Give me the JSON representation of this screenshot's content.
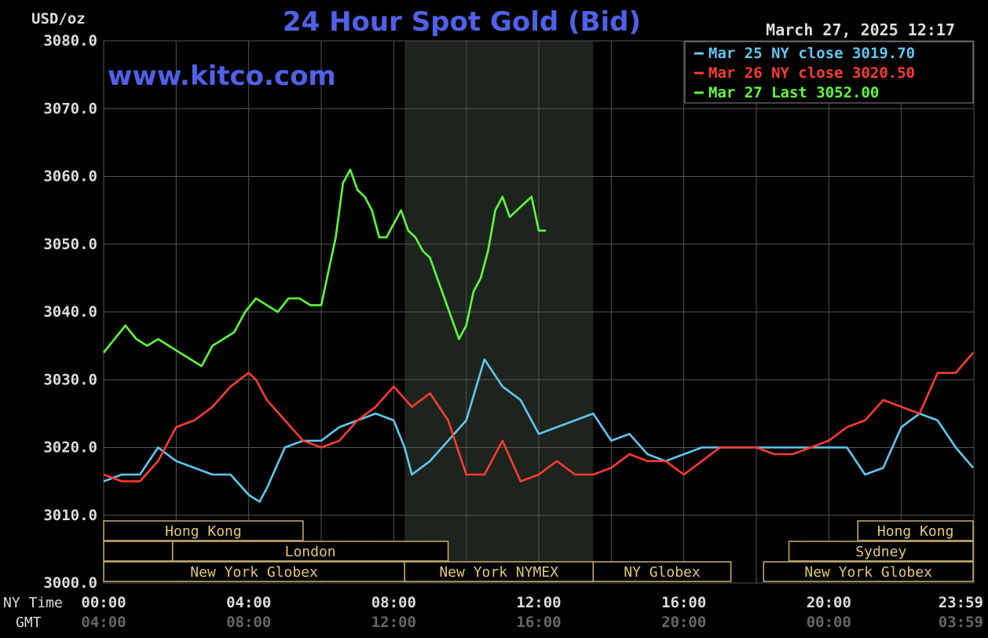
{
  "chart_data": {
    "type": "line",
    "title": "24 Hour Spot Gold (Bid)",
    "unit_label": "USD/oz",
    "watermark": "www.kitco.com",
    "timestamp": "March 27, 2025 12:17",
    "ylim": [
      3000,
      3080
    ],
    "y_ticks": [
      "3080.0",
      "3070.0",
      "3060.0",
      "3050.0",
      "3040.0",
      "3030.0",
      "3020.0",
      "3010.0",
      "3000.0"
    ],
    "y_tick_values": [
      3080,
      3070,
      3060,
      3050,
      3040,
      3030,
      3020,
      3010,
      3000
    ],
    "xlim_hours": [
      0,
      24
    ],
    "x_row_labels": {
      "ny": "NY Time",
      "gmt": "GMT"
    },
    "x_ticks_ny": [
      "00:00",
      "04:00",
      "08:00",
      "12:00",
      "16:00",
      "20:00",
      "23:59"
    ],
    "x_ticks_gmt": [
      "04:00",
      "08:00",
      "12:00",
      "16:00",
      "20:00",
      "00:00",
      "03:59"
    ],
    "x_tick_hours": [
      0,
      4,
      8,
      12,
      16,
      20,
      23.98
    ],
    "shaded_region_hours": [
      8.3,
      13.5
    ],
    "legend": [
      {
        "label": "Mar 25 NY close 3019.70",
        "color": "#5ec8f0"
      },
      {
        "label": "Mar 26 NY close 3020.50",
        "color": "#ff3b2f"
      },
      {
        "label": "Mar 27 Last 3052.00",
        "color": "#5cff3a"
      }
    ],
    "series": [
      {
        "name": "Mar 25 NY close 3019.70",
        "color": "#5ec8f0",
        "x": [
          0,
          0.5,
          1,
          1.5,
          2,
          2.5,
          3,
          3.5,
          4,
          4.3,
          4.5,
          5,
          5.5,
          6,
          6.5,
          7,
          7.5,
          8,
          8.3,
          8.5,
          9,
          9.5,
          10,
          10.5,
          11,
          11.5,
          12,
          12.5,
          13,
          13.5,
          14,
          14.5,
          15,
          15.5,
          16,
          16.5,
          17,
          17.5,
          18,
          18.5,
          19,
          19.5,
          20,
          20.5,
          21,
          21.5,
          22,
          22.5,
          23,
          23.5,
          23.98
        ],
        "values": [
          3015,
          3016,
          3016,
          3020,
          3018,
          3017,
          3016,
          3016,
          3013,
          3012,
          3014,
          3020,
          3021,
          3021,
          3023,
          3024,
          3025,
          3024,
          3020,
          3016,
          3018,
          3021,
          3024,
          3033,
          3029,
          3027,
          3022,
          3023,
          3024,
          3025,
          3021,
          3022,
          3019,
          3018,
          3019,
          3020,
          3020,
          3020,
          3020,
          3020,
          3020,
          3020,
          3020,
          3020,
          3016,
          3017,
          3023,
          3025,
          3024,
          3020,
          3017
        ]
      },
      {
        "name": "Mar 26 NY close 3020.50",
        "color": "#ff3b2f",
        "x": [
          0,
          0.5,
          1,
          1.5,
          2,
          2.5,
          3,
          3.5,
          4,
          4.2,
          4.5,
          5,
          5.5,
          6,
          6.5,
          7,
          7.5,
          8,
          8.5,
          9,
          9.5,
          10,
          10.5,
          11,
          11.5,
          12,
          12.5,
          13,
          13.5,
          14,
          14.5,
          15,
          15.5,
          16,
          16.5,
          17,
          17.5,
          18,
          18.5,
          19,
          19.5,
          20,
          20.5,
          21,
          21.5,
          22,
          22.5,
          23,
          23.5,
          23.98
        ],
        "values": [
          3016,
          3015,
          3015,
          3018,
          3023,
          3024,
          3026,
          3029,
          3031,
          3030,
          3027,
          3024,
          3021,
          3020,
          3021,
          3024,
          3026,
          3029,
          3026,
          3028,
          3024,
          3016,
          3016,
          3021,
          3015,
          3016,
          3018,
          3016,
          3016,
          3017,
          3019,
          3018,
          3018,
          3016,
          3018,
          3020,
          3020,
          3020,
          3019,
          3019,
          3020,
          3021,
          3023,
          3024,
          3027,
          3026,
          3025,
          3031,
          3031,
          3034
        ]
      },
      {
        "name": "Mar 27 Last 3052.00",
        "color": "#5cff3a",
        "x": [
          0,
          0.3,
          0.6,
          0.9,
          1.2,
          1.5,
          1.8,
          2.1,
          2.4,
          2.7,
          3,
          3.3,
          3.6,
          3.9,
          4.2,
          4.5,
          4.8,
          5.1,
          5.4,
          5.7,
          6,
          6.2,
          6.4,
          6.6,
          6.8,
          7,
          7.2,
          7.4,
          7.6,
          7.8,
          8,
          8.2,
          8.4,
          8.6,
          8.8,
          9,
          9.2,
          9.4,
          9.6,
          9.8,
          10,
          10.2,
          10.4,
          10.6,
          10.8,
          11,
          11.2,
          11.4,
          11.6,
          11.8,
          12,
          12.2
        ],
        "values": [
          3034,
          3036,
          3038,
          3036,
          3035,
          3036,
          3035,
          3034,
          3033,
          3032,
          3035,
          3036,
          3037,
          3040,
          3042,
          3041,
          3040,
          3042,
          3042,
          3041,
          3041,
          3046,
          3051,
          3059,
          3061,
          3058,
          3057,
          3055,
          3051,
          3051,
          3053,
          3055,
          3052,
          3051,
          3049,
          3048,
          3045,
          3042,
          3039,
          3036,
          3038,
          3043,
          3045,
          3049,
          3055,
          3057,
          3054,
          3055,
          3056,
          3057,
          3052,
          3052
        ]
      }
    ],
    "sessions": [
      {
        "label": "Hong Kong",
        "start": 0,
        "end": 5.5,
        "row": 0
      },
      {
        "label": "",
        "start": 0,
        "end": 1.9,
        "row": 1
      },
      {
        "label": "London",
        "start": 1.9,
        "end": 9.5,
        "row": 1
      },
      {
        "label": "New York Globex",
        "start": 0,
        "end": 8.3,
        "row": 2
      },
      {
        "label": "New York NYMEX",
        "start": 8.3,
        "end": 13.5,
        "row": 2
      },
      {
        "label": "NY Globex",
        "start": 13.5,
        "end": 17.3,
        "row": 2
      },
      {
        "label": "Hong Kong",
        "start": 20.8,
        "end": 23.98,
        "row": 0
      },
      {
        "label": "Sydney",
        "start": 18.9,
        "end": 23.98,
        "row": 1
      },
      {
        "label": "New York Globex",
        "start": 18.2,
        "end": 23.98,
        "row": 2
      }
    ]
  }
}
